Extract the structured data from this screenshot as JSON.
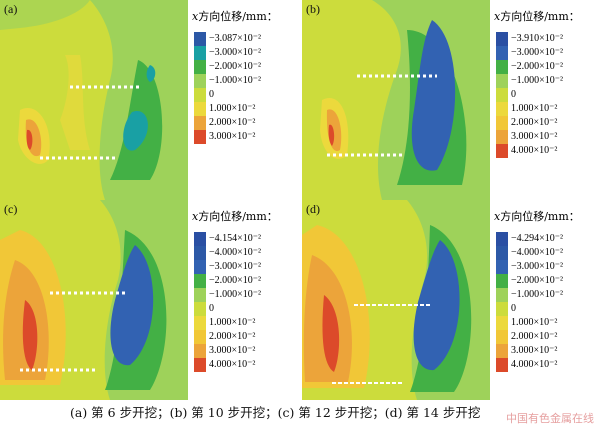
{
  "figure": {
    "caption": "(a) 第 6 步开挖；(b) 第 10 步开挖；(c) 第 12 步开挖；(d) 第 14 步开挖",
    "watermark": "中国有色金属在线",
    "panels": [
      {
        "label": "(a)",
        "legend_title": "x",
        "legend_title_suffix": "方向位移/mm：",
        "legend": [
          {
            "value": "−3.087×10⁻²",
            "color": "#2c58a6"
          },
          {
            "value": "−3.000×10⁻²",
            "color": "#19a0a4"
          },
          {
            "value": "−2.000×10⁻²",
            "color": "#43b045"
          },
          {
            "value": "−1.000×10⁻²",
            "color": "#9ed25a"
          },
          {
            "value": "0",
            "color": "#ccdc3c"
          },
          {
            "value": "1.000×10⁻²",
            "color": "#ecd93c"
          },
          {
            "value": "2.000×10⁻²",
            "color": "#eca43a"
          },
          {
            "value": "3.000×10⁻²",
            "color": "#dc4a2a"
          }
        ]
      },
      {
        "label": "(b)",
        "legend_title": "x",
        "legend_title_suffix": "方向位移/mm：",
        "legend": [
          {
            "value": "−3.910×10⁻²",
            "color": "#2a4fa3"
          },
          {
            "value": "−3.000×10⁻²",
            "color": "#3262b2"
          },
          {
            "value": "−2.000×10⁻²",
            "color": "#43b045"
          },
          {
            "value": "−1.000×10⁻²",
            "color": "#9ed25a"
          },
          {
            "value": "0",
            "color": "#ccdc3c"
          },
          {
            "value": "1.000×10⁻²",
            "color": "#ecd93c"
          },
          {
            "value": "2.000×10⁻²",
            "color": "#f1c737"
          },
          {
            "value": "3.000×10⁻²",
            "color": "#eca43a"
          },
          {
            "value": "4.000×10⁻²",
            "color": "#dc4a2a"
          }
        ]
      },
      {
        "label": "(c)",
        "legend_title": "x",
        "legend_title_suffix": "方向位移/mm：",
        "legend": [
          {
            "value": "−4.154×10⁻²",
            "color": "#2a4fa3"
          },
          {
            "value": "−4.000×10⁻²",
            "color": "#2c58a6"
          },
          {
            "value": "−3.000×10⁻²",
            "color": "#3262b2"
          },
          {
            "value": "−2.000×10⁻²",
            "color": "#43b045"
          },
          {
            "value": "−1.000×10⁻²",
            "color": "#9ed25a"
          },
          {
            "value": "0",
            "color": "#ccdc3c"
          },
          {
            "value": "1.000×10⁻²",
            "color": "#ecd93c"
          },
          {
            "value": "2.000×10⁻²",
            "color": "#f1c737"
          },
          {
            "value": "3.000×10⁻²",
            "color": "#eca43a"
          },
          {
            "value": "4.000×10⁻²",
            "color": "#dc4a2a"
          }
        ]
      },
      {
        "label": "(d)",
        "legend_title": "x",
        "legend_title_suffix": "方向位移/mm：",
        "legend": [
          {
            "value": "−4.294×10⁻²",
            "color": "#2a4fa3"
          },
          {
            "value": "−4.000×10⁻²",
            "color": "#2c58a6"
          },
          {
            "value": "−3.000×10⁻²",
            "color": "#3262b2"
          },
          {
            "value": "−2.000×10⁻²",
            "color": "#43b045"
          },
          {
            "value": "−1.000×10⁻²",
            "color": "#9ed25a"
          },
          {
            "value": "0",
            "color": "#ccdc3c"
          },
          {
            "value": "1.000×10⁻²",
            "color": "#ecd93c"
          },
          {
            "value": "2.000×10⁻²",
            "color": "#f1c737"
          },
          {
            "value": "3.000×10⁻²",
            "color": "#eca43a"
          },
          {
            "value": "4.000×10⁻²",
            "color": "#dc4a2a"
          }
        ]
      }
    ]
  }
}
